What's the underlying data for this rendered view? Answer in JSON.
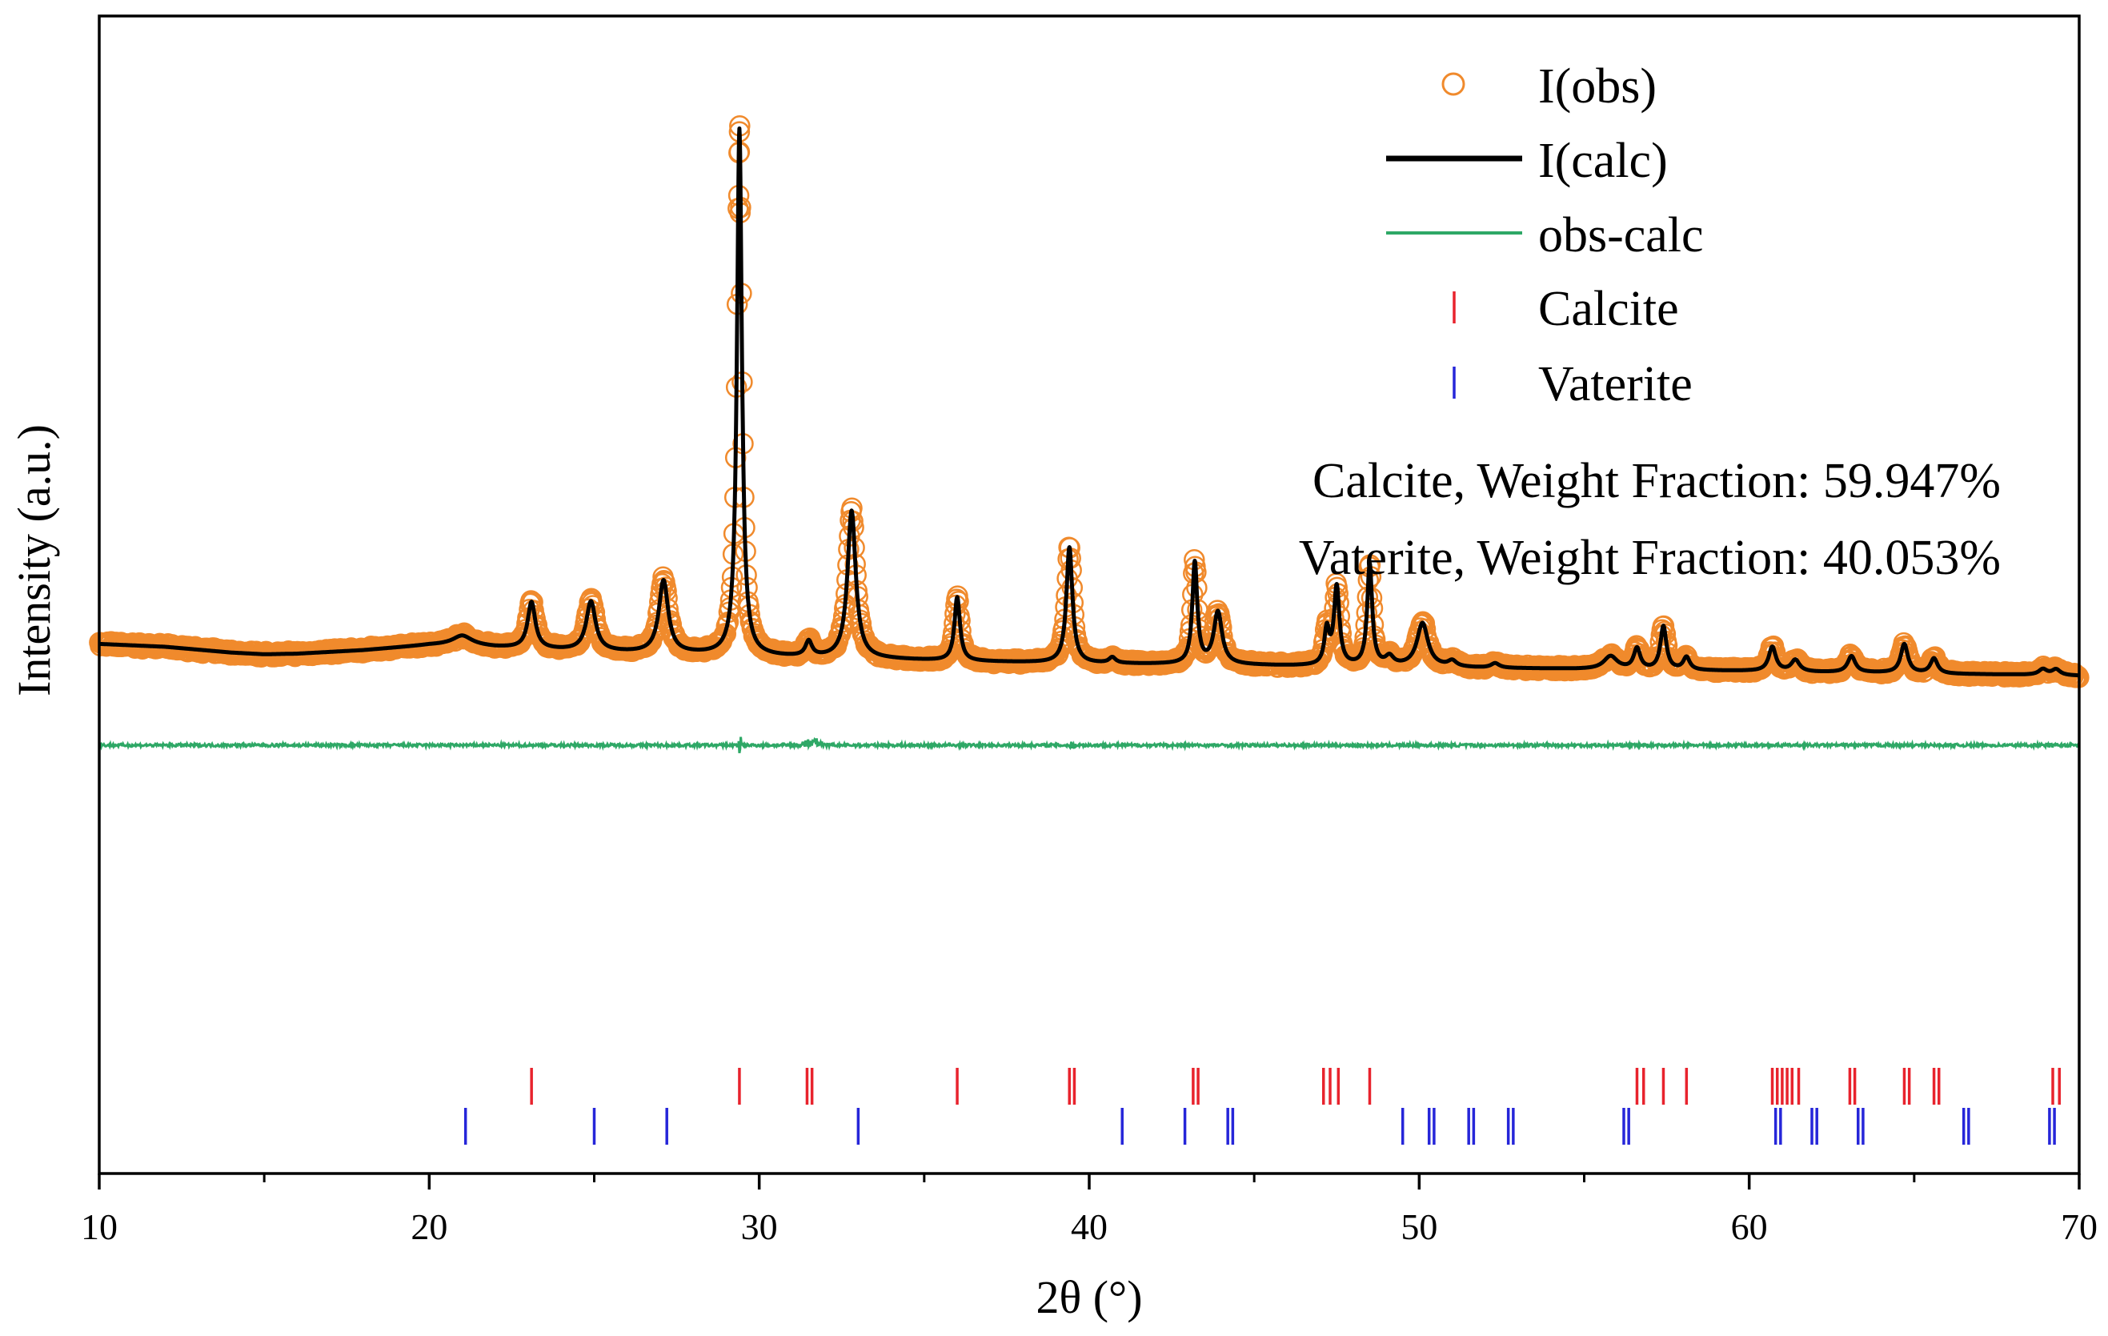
{
  "chart_data": {
    "type": "line",
    "title": "",
    "xlabel": "2θ (°)",
    "ylabel": "Intensity (a.u.)",
    "xlim": [
      10,
      70
    ],
    "ylim": [
      -85,
      115
    ],
    "x_ticks": [
      10,
      20,
      30,
      40,
      50,
      60,
      70
    ],
    "x_tick_labels": [
      "10",
      "20",
      "30",
      "40",
      "50",
      "60",
      "70"
    ],
    "x_minor_ticks": [
      15,
      25,
      35,
      45,
      55,
      65
    ],
    "legend": {
      "placement": "top-right",
      "entries": [
        "I(obs)",
        "I(calc)",
        "obs-calc",
        "Calcite",
        "Vaterite"
      ]
    },
    "annotations": [
      "Calcite, Weight Fraction: 59.947%",
      "Vaterite, Weight Fraction: 40.053%"
    ],
    "background": {
      "x": [
        10,
        12,
        14,
        15,
        16,
        18,
        20,
        21,
        22,
        24,
        26,
        28,
        30,
        32,
        34,
        36,
        38,
        40,
        42,
        44,
        46,
        48,
        50,
        52,
        54,
        56,
        58,
        60,
        62,
        64,
        66,
        68,
        70
      ],
      "y": [
        6.5,
        6.0,
        5.0,
        4.7,
        4.8,
        5.4,
        6.3,
        6.4,
        5.9,
        5.4,
        5.0,
        4.7,
        4.3,
        4.0,
        3.8,
        3.5,
        3.3,
        3.1,
        3.0,
        2.9,
        2.7,
        2.6,
        2.5,
        2.3,
        2.2,
        2.0,
        1.9,
        1.8,
        1.6,
        1.5,
        1.3,
        1.2,
        1.0
      ]
    },
    "peaks": [
      {
        "pos": 21.0,
        "h": 1.5,
        "w": 0.35
      },
      {
        "pos": 23.1,
        "h": 8.0,
        "w": 0.14
      },
      {
        "pos": 24.9,
        "h": 8.5,
        "w": 0.17
      },
      {
        "pos": 27.1,
        "h": 12.5,
        "w": 0.17
      },
      {
        "pos": 29.4,
        "h": 91.0,
        "w": 0.09
      },
      {
        "pos": 31.5,
        "h": 2.6,
        "w": 0.12
      },
      {
        "pos": 32.8,
        "h": 25.5,
        "w": 0.15
      },
      {
        "pos": 36.0,
        "h": 11.0,
        "w": 0.1
      },
      {
        "pos": 39.4,
        "h": 20.0,
        "w": 0.11
      },
      {
        "pos": 40.7,
        "h": 1.0,
        "w": 0.12
      },
      {
        "pos": 43.2,
        "h": 17.5,
        "w": 0.09
      },
      {
        "pos": 43.9,
        "h": 9.0,
        "w": 0.15
      },
      {
        "pos": 47.2,
        "h": 6.0,
        "w": 0.09
      },
      {
        "pos": 47.5,
        "h": 13.5,
        "w": 0.1
      },
      {
        "pos": 48.5,
        "h": 17.5,
        "w": 0.09
      },
      {
        "pos": 49.1,
        "h": 1.5,
        "w": 0.15
      },
      {
        "pos": 50.1,
        "h": 7.5,
        "w": 0.2
      },
      {
        "pos": 51.0,
        "h": 1.0,
        "w": 0.15
      },
      {
        "pos": 52.3,
        "h": 0.8,
        "w": 0.15
      },
      {
        "pos": 55.8,
        "h": 2.3,
        "w": 0.25
      },
      {
        "pos": 56.6,
        "h": 3.6,
        "w": 0.12
      },
      {
        "pos": 57.4,
        "h": 7.5,
        "w": 0.11
      },
      {
        "pos": 58.1,
        "h": 2.2,
        "w": 0.12
      },
      {
        "pos": 60.7,
        "h": 4.2,
        "w": 0.13
      },
      {
        "pos": 61.4,
        "h": 2.0,
        "w": 0.15
      },
      {
        "pos": 63.1,
        "h": 2.8,
        "w": 0.14
      },
      {
        "pos": 64.7,
        "h": 5.0,
        "w": 0.13
      },
      {
        "pos": 65.6,
        "h": 2.6,
        "w": 0.13
      },
      {
        "pos": 68.9,
        "h": 1.0,
        "w": 0.15
      },
      {
        "pos": 69.3,
        "h": 1.0,
        "w": 0.15
      }
    ],
    "difference_baseline": -11,
    "calcite_reflections": [
      23.1,
      29.4,
      31.45,
      31.6,
      36.0,
      39.4,
      39.55,
      43.15,
      43.3,
      47.1,
      47.3,
      47.55,
      48.5,
      56.6,
      56.8,
      57.4,
      58.1,
      60.7,
      60.85,
      61.0,
      61.15,
      61.3,
      61.5,
      63.05,
      63.2,
      64.7,
      64.85,
      65.6,
      65.75,
      69.2,
      69.4
    ],
    "vaterite_reflections": [
      21.1,
      25.0,
      27.2,
      33.0,
      41.0,
      42.9,
      44.2,
      44.35,
      49.5,
      50.3,
      50.45,
      51.5,
      51.65,
      52.7,
      52.85,
      56.2,
      56.35,
      60.8,
      60.95,
      61.9,
      62.05,
      63.3,
      63.45,
      66.5,
      66.65,
      69.1,
      69.25
    ],
    "colors": {
      "obs": "#f08a2c",
      "calc": "#000000",
      "diff": "#2ea866",
      "calcite": "#e8232d",
      "vaterite": "#2626d9",
      "axis": "#000000"
    }
  }
}
